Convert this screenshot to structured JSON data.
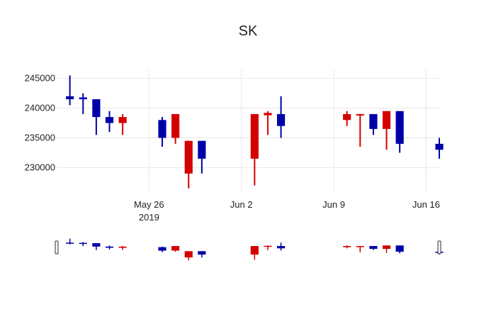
{
  "chart_data": {
    "type": "candlestick",
    "title": "SK",
    "xlabel": "",
    "ylabel": "",
    "ylim": [
      226000,
      246500
    ],
    "yticks": [
      230000,
      235000,
      240000,
      245000
    ],
    "ytick_labels": [
      "230000",
      "235000",
      "240000",
      "245000"
    ],
    "x_range": [
      "2019-05-19",
      "2019-06-17"
    ],
    "xticks": [
      {
        "date": "2019-05-26",
        "label": "May 26",
        "sublabel": "2019"
      },
      {
        "date": "2019-06-02",
        "label": "Jun 2",
        "sublabel": ""
      },
      {
        "date": "2019-06-09",
        "label": "Jun 9",
        "sublabel": ""
      },
      {
        "date": "2019-06-16",
        "label": "Jun 16",
        "sublabel": ""
      }
    ],
    "colors": {
      "increasing": "#0000a8",
      "decreasing": "#d40000",
      "grid": "#e8e8e8"
    },
    "grid": true,
    "rangeslider": true,
    "series": [
      {
        "date": "2019-05-20",
        "open": 241500,
        "high": 245500,
        "low": 240500,
        "close": 242000
      },
      {
        "date": "2019-05-21",
        "open": 241500,
        "high": 242500,
        "low": 239000,
        "close": 241800
      },
      {
        "date": "2019-05-22",
        "open": 238500,
        "high": 241500,
        "low": 235500,
        "close": 241500
      },
      {
        "date": "2019-05-23",
        "open": 237500,
        "high": 239500,
        "low": 236000,
        "close": 238500
      },
      {
        "date": "2019-05-24",
        "open": 238500,
        "high": 239000,
        "low": 235500,
        "close": 237500
      },
      {
        "date": "2019-05-27",
        "open": 235000,
        "high": 238500,
        "low": 233500,
        "close": 238000
      },
      {
        "date": "2019-05-28",
        "open": 239000,
        "high": 239000,
        "low": 234000,
        "close": 235000
      },
      {
        "date": "2019-05-29",
        "open": 234500,
        "high": 234500,
        "low": 226500,
        "close": 229000
      },
      {
        "date": "2019-05-30",
        "open": 231500,
        "high": 234500,
        "low": 229000,
        "close": 234500
      },
      {
        "date": "2019-06-03",
        "open": 239000,
        "high": 239000,
        "low": 227000,
        "close": 231500
      },
      {
        "date": "2019-06-04",
        "open": 239200,
        "high": 239500,
        "low": 235500,
        "close": 238800
      },
      {
        "date": "2019-06-05",
        "open": 237000,
        "high": 242000,
        "low": 235000,
        "close": 239000
      },
      {
        "date": "2019-06-10",
        "open": 239000,
        "high": 239500,
        "low": 237000,
        "close": 238000
      },
      {
        "date": "2019-06-11",
        "open": 239000,
        "high": 239000,
        "low": 233500,
        "close": 238800
      },
      {
        "date": "2019-06-12",
        "open": 236500,
        "high": 239000,
        "low": 235500,
        "close": 239000
      },
      {
        "date": "2019-06-13",
        "open": 239500,
        "high": 239500,
        "low": 233000,
        "close": 236500
      },
      {
        "date": "2019-06-14",
        "open": 234000,
        "high": 239500,
        "low": 232500,
        "close": 239500
      },
      {
        "date": "2019-06-17",
        "open": 233000,
        "high": 235000,
        "low": 231500,
        "close": 234000
      }
    ]
  }
}
